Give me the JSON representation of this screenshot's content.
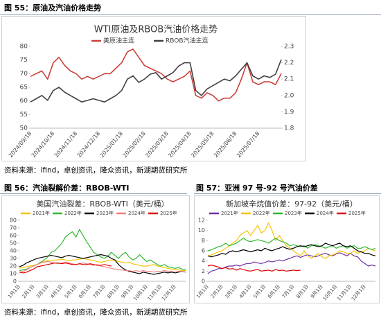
{
  "captions": [
    "图 55：原油及汽油价格走势",
    "图 56：汽油裂解价差：RBOB-WTI",
    "图 57：亚洲 97 号-92 号汽油价差"
  ],
  "sources": [
    "资料来源：ifind，卓创资讯，隆众资讯，新湖期货研究所",
    "资料来源：ifind，卓创资讯，隆众资讯，新湖期货研究所"
  ],
  "chart_data": [
    {
      "type": "line",
      "title": "WTI原油及RBOB汽油价格走势",
      "categories": [
        "2024/09/18",
        null,
        null,
        null,
        "2024/10/18",
        null,
        null,
        null,
        "2024/11/18",
        null,
        null,
        null,
        "2024/12/18",
        null,
        null,
        null,
        "2025/01/18",
        null,
        null,
        null,
        "2025/02/18",
        null,
        null,
        null,
        "2025/03/18",
        null,
        null,
        null,
        "2025/04/18",
        null,
        null,
        null,
        "2025/05/18",
        null,
        null,
        null,
        "2025/06/18",
        null,
        null,
        null,
        "2025/07/18",
        null,
        null,
        null,
        null
      ],
      "series": [
        {
          "name": "美原油主连",
          "color": "#c9403a",
          "values": [
            69,
            70,
            71,
            68,
            74,
            76,
            73,
            71,
            70,
            68,
            69,
            68,
            69,
            70,
            70,
            72,
            74,
            78,
            79,
            76,
            73,
            72,
            71,
            70,
            68,
            67,
            68,
            69,
            71,
            62,
            61,
            63,
            62,
            60,
            61,
            61,
            63,
            68,
            74,
            67,
            66,
            67,
            67,
            66,
            70
          ]
        },
        {
          "name": "RBOB汽油主连",
          "color": "#404040",
          "axis": "y2",
          "values": [
            1.96,
            1.98,
            2.0,
            1.97,
            2.03,
            2.05,
            2.02,
            2.0,
            1.98,
            1.96,
            1.97,
            1.98,
            1.97,
            1.96,
            1.98,
            2.0,
            2.03,
            2.1,
            2.12,
            2.08,
            2.1,
            2.13,
            2.14,
            2.1,
            2.12,
            2.14,
            2.18,
            2.2,
            2.2,
            2.03,
            2.0,
            2.04,
            2.06,
            2.08,
            2.1,
            2.09,
            2.12,
            2.16,
            2.2,
            2.12,
            2.1,
            2.12,
            2.11,
            2.13,
            2.22
          ]
        }
      ],
      "ylim": [
        50,
        80
      ],
      "yticks": [
        50,
        55,
        60,
        65,
        70,
        75,
        80
      ],
      "y2lim": [
        1.8,
        2.3
      ],
      "y2ticks": [
        1.8,
        1.9,
        {
          "value": 2,
          "label": "2.0"
        },
        2.1,
        2.2,
        2.3
      ],
      "grid": false
    },
    {
      "type": "line",
      "title": "美国汽油裂差：RBOB-WTI（美元/桶）",
      "categories": [
        "1月1日",
        null,
        null,
        null,
        "2月1日",
        null,
        null,
        null,
        "3月1日",
        null,
        null,
        null,
        "4月1日",
        null,
        null,
        null,
        "5月1日",
        null,
        null,
        null,
        "6月1日",
        null,
        null,
        null,
        "7月1日",
        null,
        null,
        null,
        "8月1日",
        null,
        null,
        null,
        "9月1日",
        null,
        null,
        null,
        "10月1日",
        null,
        null,
        null,
        "11月1日",
        null,
        null,
        null,
        "12月1日",
        null,
        null,
        null
      ],
      "series": [
        {
          "name": "2021年",
          "color": "#f5c400",
          "values": [
            17,
            18,
            19,
            20,
            21,
            22,
            24,
            26,
            27,
            27,
            28,
            28,
            29,
            28,
            27,
            28,
            28,
            29,
            30,
            29,
            28,
            27,
            26,
            25,
            26,
            27,
            28,
            27,
            26,
            25,
            24,
            25,
            23,
            22,
            21,
            20,
            20,
            21,
            22,
            20,
            19,
            18,
            17,
            16,
            15,
            15,
            14,
            14
          ]
        },
        {
          "name": "2022年",
          "color": "#2eb82e",
          "values": [
            14,
            15,
            16,
            18,
            20,
            22,
            25,
            28,
            32,
            38,
            40,
            45,
            50,
            58,
            62,
            65,
            58,
            68,
            60,
            52,
            45,
            38,
            35,
            32,
            30,
            33,
            38,
            34,
            30,
            35,
            38,
            32,
            28,
            30,
            35,
            30,
            26,
            28,
            25,
            22,
            20,
            22,
            19,
            18,
            17,
            18,
            16,
            15
          ]
        },
        {
          "name": "2023年",
          "color": "#000000",
          "values": [
            19,
            21,
            24,
            26,
            28,
            30,
            31,
            32,
            33,
            34,
            33,
            32,
            31,
            33,
            34,
            33,
            32,
            31,
            30,
            31,
            32,
            33,
            34,
            35,
            34,
            33,
            30,
            28,
            22,
            18,
            15,
            13,
            12,
            11,
            10,
            12,
            11,
            10,
            9,
            10,
            11,
            12,
            11,
            12,
            11,
            12,
            13,
            12
          ]
        },
        {
          "name": "2024年",
          "color": "#f08080",
          "values": [
            12,
            13,
            15,
            18,
            20,
            22,
            24,
            25,
            26,
            25,
            24,
            23,
            24,
            25,
            24,
            23,
            22,
            23,
            24,
            23,
            22,
            21,
            22,
            20,
            19,
            18,
            17,
            16,
            15,
            15,
            14,
            14,
            13,
            14,
            13,
            14,
            13,
            13,
            12,
            13,
            13,
            14,
            13,
            13,
            12,
            13,
            13,
            12
          ]
        },
        {
          "name": "2025年",
          "color": "#e00000",
          "values": [
            12,
            11,
            12,
            14,
            16,
            19,
            20,
            21,
            22,
            23,
            24,
            24,
            23,
            24,
            23,
            22,
            22,
            23,
            22,
            22,
            23,
            22,
            21,
            21,
            22,
            21,
            20,
            null,
            null,
            null,
            null,
            null,
            null,
            null,
            null,
            null,
            null,
            null,
            null,
            null,
            null,
            null,
            null,
            null,
            null,
            null,
            null,
            null
          ]
        }
      ],
      "ylim": [
        0,
        80
      ],
      "yticks": [
        0,
        10,
        20,
        30,
        40,
        50,
        60,
        70,
        80
      ],
      "grid": false
    },
    {
      "type": "line",
      "title": "新加坡辛烷值价差：97-92（美元/桶）",
      "categories": [
        "1月1日",
        null,
        null,
        null,
        "2月1日",
        null,
        null,
        null,
        "3月1日",
        null,
        null,
        null,
        "4月1日",
        null,
        null,
        null,
        "5月1日",
        null,
        null,
        null,
        "6月1日",
        null,
        null,
        null,
        "7月1日",
        null,
        null,
        null,
        "8月1日",
        null,
        null,
        null,
        "9月1日",
        null,
        null,
        null,
        "10月1日",
        null,
        null,
        null,
        "11月1日",
        null,
        null,
        null,
        "12月1日",
        null,
        null,
        null
      ],
      "series": [
        {
          "name": "2021年",
          "color": "#7030a0",
          "values": [
            1.5,
            2,
            2.2,
            2.5,
            2.5,
            2.8,
            3,
            3,
            3.2,
            3,
            3.3,
            3.5,
            3.5,
            3.8,
            3.6,
            3.5,
            3.7,
            4,
            3.8,
            4,
            4.2,
            4,
            4.3,
            4.5,
            4.8,
            5,
            4.7,
            5,
            5.2,
            5,
            4.8,
            5,
            5.3,
            5.5,
            5.2,
            5,
            5.4,
            5.6,
            5.3,
            5,
            5.5,
            5,
            4.8,
            4,
            3.5,
            3,
            3.2,
            3
          ]
        },
        {
          "name": "2022年",
          "color": "#f5c400",
          "values": [
            5,
            5.2,
            5.5,
            5.8,
            6,
            6.5,
            7,
            7.5,
            8,
            9,
            9.5,
            10,
            9,
            10,
            11,
            9.5,
            10,
            11.5,
            10,
            8,
            9,
            8,
            7,
            6.5,
            6,
            5.5,
            5,
            6,
            5,
            4.5,
            5,
            5.5,
            4.8,
            4.5,
            5,
            5.2,
            5.5,
            6,
            5.8,
            5.5,
            5.5,
            6,
            5.5,
            5.8,
            6,
            6.5,
            6.2,
            6
          ]
        },
        {
          "name": "2023年",
          "color": "#2eb82e",
          "values": [
            6,
            6.2,
            6.5,
            6.8,
            7,
            7.5,
            7,
            7.2,
            7.5,
            8,
            8.5,
            8,
            7.8,
            8,
            8.2,
            8,
            7.8,
            7.5,
            8,
            8.5,
            8,
            7.8,
            7.5,
            7,
            7.2,
            7,
            6.8,
            7,
            6.5,
            7,
            7.2,
            7,
            6.8,
            6.5,
            6.8,
            7,
            6.5,
            6.8,
            7,
            6.5,
            6.8,
            7,
            6.5,
            6.5,
            6.8,
            6.5,
            6.2,
            6.5
          ]
        },
        {
          "name": "2024年",
          "color": "#000000",
          "values": [
            5,
            4.8,
            5,
            5.2,
            5.5,
            5.3,
            5.8,
            6,
            5.8,
            6,
            6.2,
            6,
            5.8,
            6,
            6.2,
            6,
            6.5,
            6.2,
            6,
            6.3,
            6.5,
            6.8,
            6.5,
            6.3,
            6.5,
            6.8,
            7,
            6.8,
            7,
            7.2,
            7,
            6.8,
            7,
            7.5,
            7.2,
            7,
            7.3,
            7.5,
            7,
            6.8,
            7,
            6.5,
            6,
            5.8,
            5.5,
            5.5,
            5.2,
            5
          ]
        },
        {
          "name": "2025年",
          "color": "#e00000",
          "values": [
            3,
            3.2,
            3,
            2.8,
            2.5,
            2.7,
            2.4,
            2.5,
            2.2,
            2.5,
            2.3,
            2.1,
            2,
            2.2,
            2.3,
            2,
            2.1,
            2.2,
            2,
            2.3,
            2.1,
            2.2,
            2,
            2.1,
            2.2,
            2.1,
            2.2,
            null,
            null,
            null,
            null,
            null,
            null,
            null,
            null,
            null,
            null,
            null,
            null,
            null,
            null,
            null,
            null,
            null,
            null,
            null,
            null,
            null
          ]
        }
      ],
      "ylim": [
        0,
        12
      ],
      "yticks": [
        0,
        2,
        4,
        6,
        8,
        10,
        12
      ],
      "grid": false
    }
  ]
}
